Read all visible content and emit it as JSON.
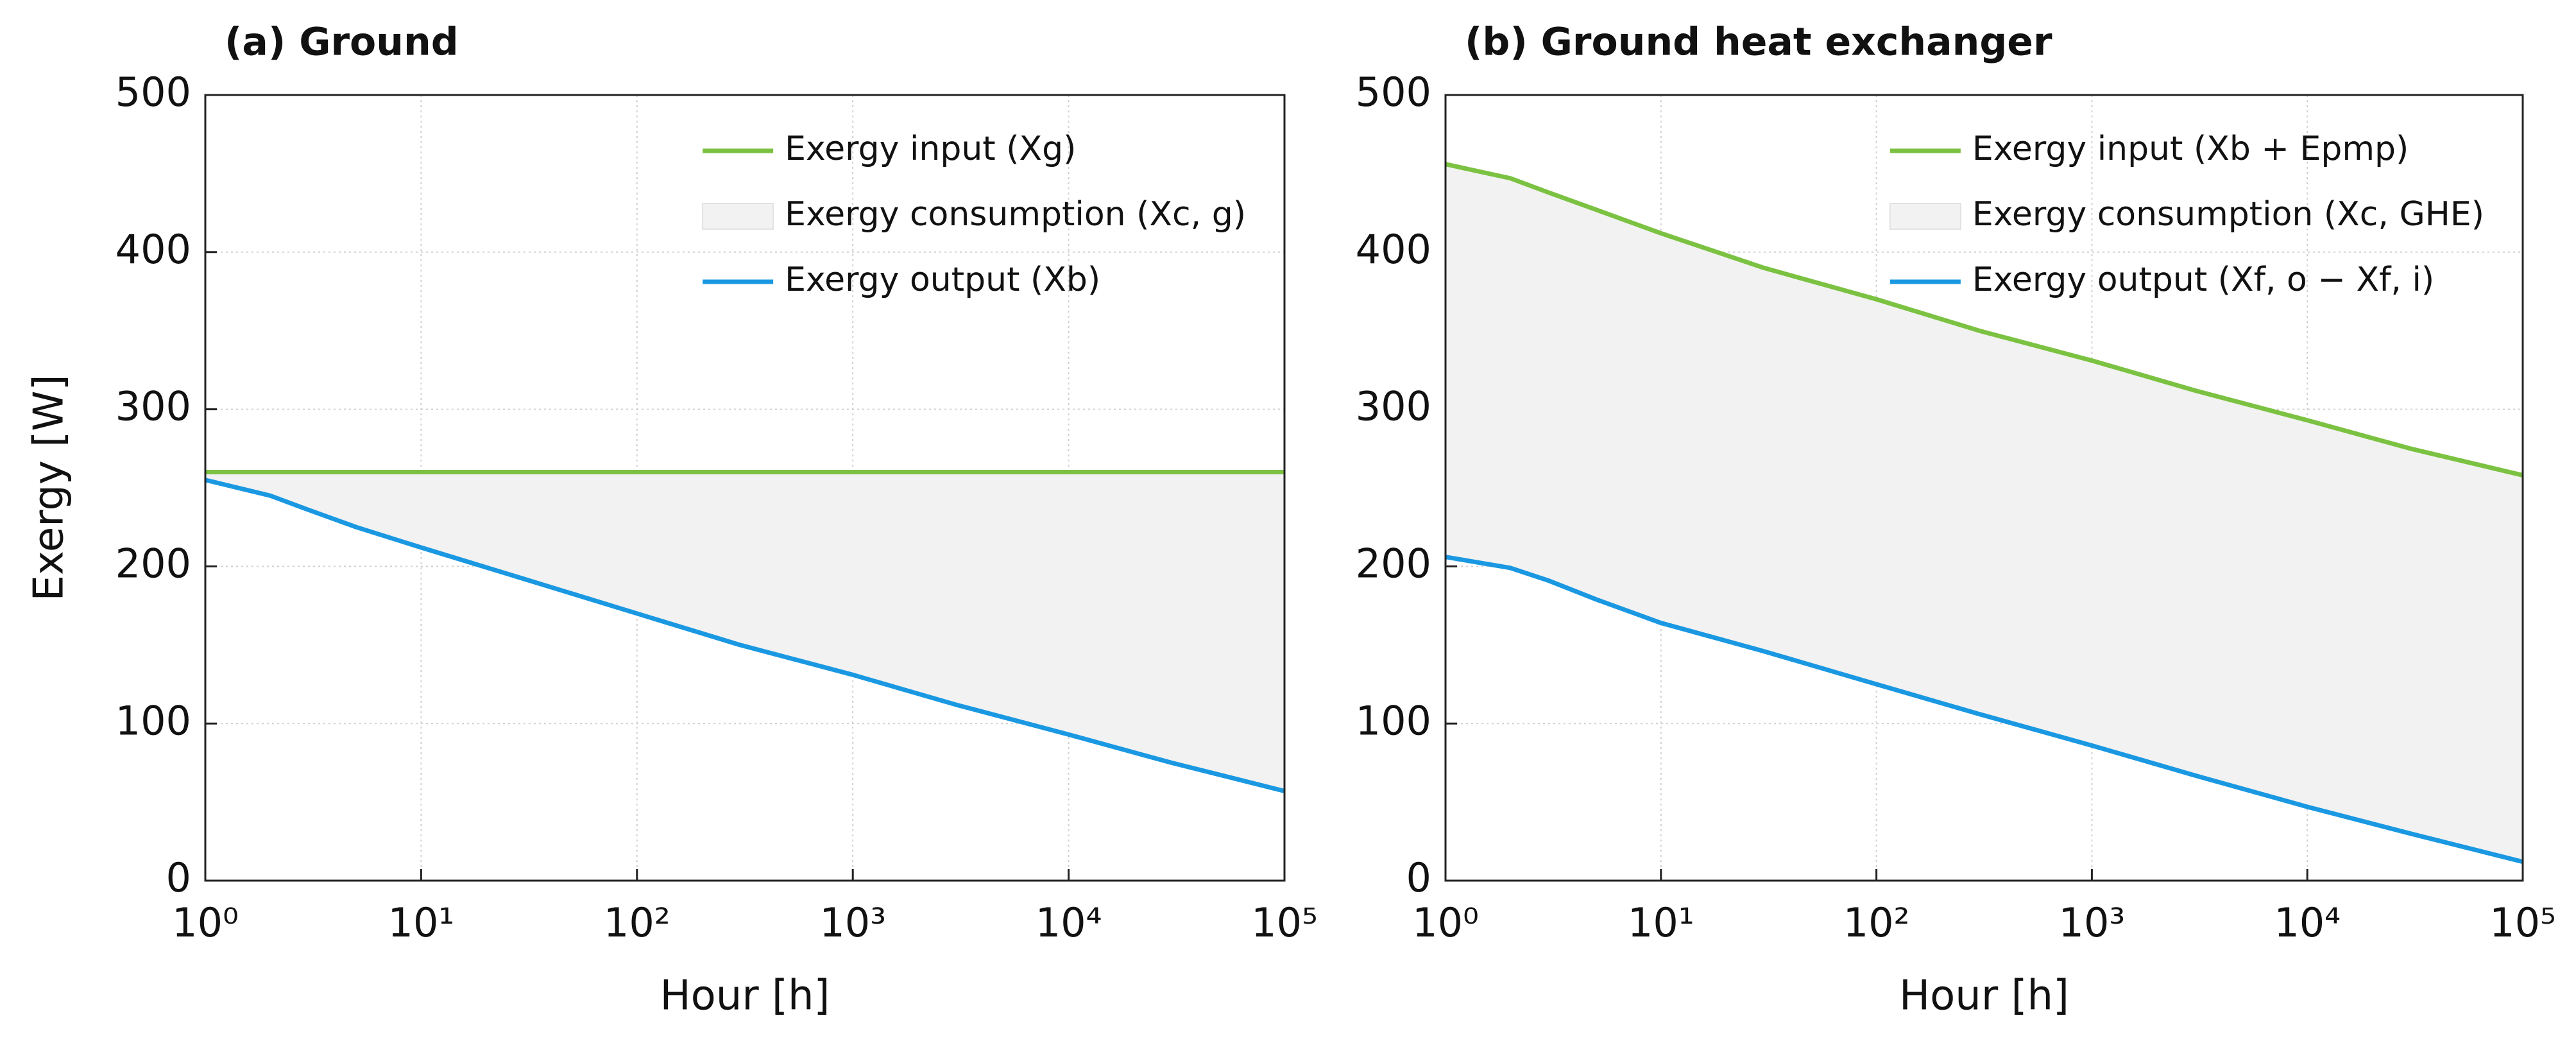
{
  "chart_data": [
    {
      "type": "line",
      "title": "(a) Ground",
      "xlabel": "Hour [h]",
      "ylabel": "Exergy [W]",
      "xscale": "log",
      "xlim": [
        1,
        100000
      ],
      "ylim": [
        0,
        500
      ],
      "xticks": [
        {
          "value": 1,
          "label": "10⁰"
        },
        {
          "value": 10,
          "label": "10¹"
        },
        {
          "value": 100,
          "label": "10²"
        },
        {
          "value": 1000,
          "label": "10³"
        },
        {
          "value": 10000,
          "label": "10⁴"
        },
        {
          "value": 100000,
          "label": "10⁵"
        }
      ],
      "yticks": [
        0,
        100,
        200,
        300,
        400,
        500
      ],
      "grid": true,
      "legend": "upper right",
      "x": [
        1,
        2,
        3,
        5,
        10,
        30,
        100,
        300,
        1000,
        3000,
        10000,
        30000,
        100000
      ],
      "series": [
        {
          "name": "Exergy input (Xg)",
          "color": "#7cc242",
          "values": [
            260,
            260,
            260,
            260,
            260,
            260,
            260,
            260,
            260,
            260,
            260,
            260,
            260
          ]
        },
        {
          "name": "Exergy output (Xb)",
          "color": "#1a98e2",
          "values": [
            255,
            245,
            236,
            225,
            212,
            192,
            170,
            150,
            131,
            112,
            93,
            75,
            57
          ]
        }
      ],
      "fill": {
        "name": "Exergy consumption (Xc, g)",
        "color": "#f2f2f2"
      }
    },
    {
      "type": "line",
      "title": "(b) Ground heat exchanger",
      "xlabel": "Hour [h]",
      "xscale": "log",
      "xlim": [
        1,
        100000
      ],
      "ylim": [
        0,
        500
      ],
      "xticks": [
        {
          "value": 1,
          "label": "10⁰"
        },
        {
          "value": 10,
          "label": "10¹"
        },
        {
          "value": 100,
          "label": "10²"
        },
        {
          "value": 1000,
          "label": "10³"
        },
        {
          "value": 10000,
          "label": "10⁴"
        },
        {
          "value": 100000,
          "label": "10⁵"
        }
      ],
      "yticks": [
        0,
        100,
        200,
        300,
        400,
        500
      ],
      "grid": true,
      "legend": "upper right",
      "x": [
        1,
        2,
        3,
        5,
        10,
        30,
        100,
        300,
        1000,
        3000,
        10000,
        30000,
        100000
      ],
      "series": [
        {
          "name": "Exergy input (Xb + Epmp)",
          "color": "#7cc242",
          "values": [
            456,
            447,
            438,
            427,
            412,
            390,
            370,
            350,
            331,
            312,
            293,
            275,
            258
          ]
        },
        {
          "name": "Exergy output (Xf, o − Xf, i)",
          "color": "#1a98e2",
          "values": [
            206,
            199,
            191,
            179,
            164,
            146,
            125,
            106,
            86,
            67,
            47,
            30,
            12
          ]
        }
      ],
      "fill": {
        "name": "Exergy consumption (Xc, GHE)",
        "color": "#f2f2f2"
      }
    }
  ]
}
